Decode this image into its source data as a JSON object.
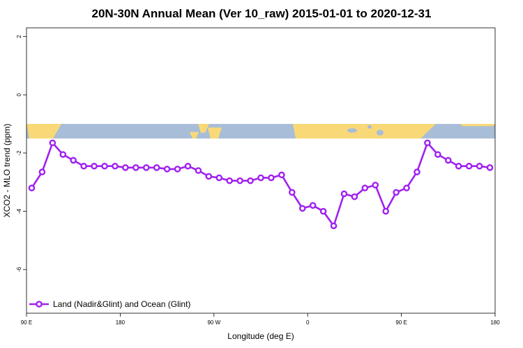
{
  "chart_data": {
    "type": "line",
    "title": "20N-30N Annual Mean (Ver 10_raw)   2015-01-01 to 2020-12-31",
    "xlabel": "Longitude (deg E)",
    "ylabel": "XCO2 - MLO trend (ppm)",
    "xlim": [
      0,
      45
    ],
    "ylim": [
      -7.5,
      2.3
    ],
    "x_ticks": [
      {
        "pos": 0,
        "label": "90 E"
      },
      {
        "pos": 9,
        "label": "180"
      },
      {
        "pos": 18,
        "label": "90 W"
      },
      {
        "pos": 27,
        "label": "0"
      },
      {
        "pos": 36,
        "label": "90 E"
      },
      {
        "pos": 45,
        "label": "180"
      }
    ],
    "y_ticks": [
      2,
      0,
      -2,
      -4,
      -6
    ],
    "map_strip": {
      "ymin": -1.5,
      "ymax": -1.0,
      "land_color": "#f9d977",
      "ocean_color": "#a8bdd8"
    },
    "series": [
      {
        "name": "Land (Nadir&Glint) and Ocean (Glint)",
        "color": "#a020f0",
        "x": [
          0.5,
          1.5,
          2.5,
          3.5,
          4.5,
          5.5,
          6.5,
          7.5,
          8.5,
          9.5,
          10.5,
          11.5,
          12.5,
          13.5,
          14.5,
          15.5,
          16.5,
          17.5,
          18.5,
          19.5,
          20.5,
          21.5,
          22.5,
          23.5,
          24.5,
          25.5,
          26.5,
          27.5,
          28.5,
          29.5,
          30.5,
          31.5,
          32.5,
          33.5,
          34.5,
          35.5,
          36.5,
          37.5,
          38.5,
          39.5,
          40.5,
          41.5,
          42.5,
          43.5,
          44.5
        ],
        "values": [
          -3.2,
          -2.65,
          -1.65,
          -2.05,
          -2.25,
          -2.45,
          -2.45,
          -2.45,
          -2.45,
          -2.5,
          -2.5,
          -2.5,
          -2.5,
          -2.55,
          -2.55,
          -2.45,
          -2.6,
          -2.8,
          -2.85,
          -2.95,
          -2.95,
          -2.95,
          -2.85,
          -2.85,
          -2.75,
          -3.35,
          -3.9,
          -3.8,
          -4.0,
          -4.5,
          -3.4,
          -3.5,
          -3.2,
          -3.1,
          -4.0,
          -3.35,
          -3.2,
          -2.65,
          -1.65,
          -2.05,
          -2.25,
          -2.45,
          -2.45,
          -2.45,
          -2.5
        ]
      }
    ],
    "legend": {
      "position": "bottom-left"
    }
  }
}
